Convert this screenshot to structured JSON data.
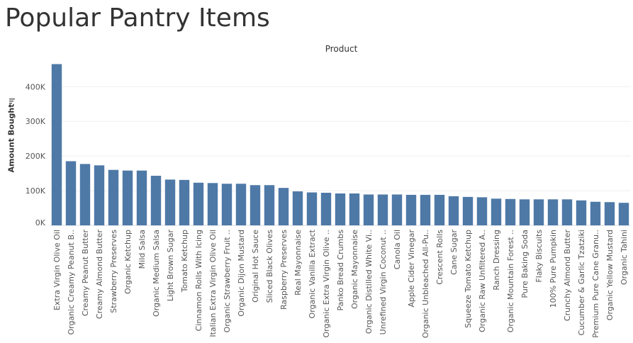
{
  "page": {
    "title": "Popular Pantry Items",
    "column_header": "Product",
    "y_axis_title": "Amount Bought"
  },
  "chart_data": {
    "type": "bar",
    "title": "Popular Pantry Items",
    "xlabel": "Product",
    "ylabel": "Amount Bought",
    "ylim": [
      0,
      470000
    ],
    "yticks": [
      "0K",
      "100K",
      "200K",
      "300K",
      "400K"
    ],
    "ytick_values": [
      0,
      100000,
      200000,
      300000,
      400000
    ],
    "grid": true,
    "bar_color": "#4e79a7",
    "categories": [
      "Extra Virgin Olive Oil",
      "Organic Creamy Peanut B..",
      "Creamy Peanut Butter",
      "Creamy Almond Butter",
      "Strawberry Preserves",
      "Organic Ketchup",
      "Mild Salsa",
      "Organic Medium Salsa",
      "Light Brown Sugar",
      "Tomato Ketchup",
      "Cinnamon Rolls With Icing",
      "Italian Extra Virgin Olive Oil",
      "Organic Strawberry Fruit ..",
      "Organic Dijon Mustard",
      "Original Hot Sauce",
      "Sliced Black Olives",
      "Raspberry Preserves",
      "Real Mayonnaise",
      "Organic Vanilla Extract",
      "Organic Extra Virgin Olive ..",
      "Panko Bread Crumbs",
      "Organic Mayonnaise",
      "Organic Distilled White Vi..",
      "Unrefined Virgin Coconut ..",
      "Canola Oil",
      "Apple Cider Vinegar",
      "Organic Unbleached All-Pu..",
      "Crescent Rolls",
      "Cane Sugar",
      "Squeeze Tomato Ketchup",
      "Organic Raw Unfiltered A..",
      "Ranch Dressing",
      "Organic Mountain Forest ..",
      "Pure Baking Soda",
      "Flaky Biscuits",
      "100% Pure Pumpkin",
      "Crunchy Almond Butter",
      "Cucumber & Garlic Tzatziki",
      "Premium Pure Cane Granu..",
      "Organic Yellow Mustard",
      "Organic Tahini"
    ],
    "values": [
      465000,
      185000,
      177000,
      173000,
      160000,
      158000,
      158000,
      143000,
      132000,
      131000,
      123000,
      122000,
      120000,
      120000,
      116000,
      116000,
      108000,
      98000,
      95000,
      94000,
      92000,
      92000,
      89000,
      89000,
      89000,
      88000,
      88000,
      88000,
      84000,
      82000,
      81000,
      77000,
      76000,
      75000,
      75000,
      75000,
      75000,
      72000,
      68000,
      67000,
      65000
    ]
  }
}
